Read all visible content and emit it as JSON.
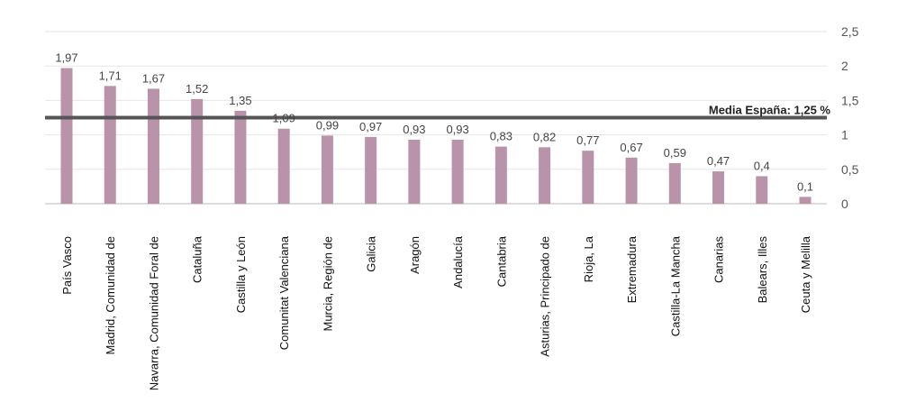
{
  "chart_data": {
    "type": "bar",
    "categories": [
      "País Vasco",
      "Madrid, Comunidad de",
      "Navarra, Comunidad Foral de",
      "Cataluña",
      "Castilla y León",
      "Comunitat Valenciana",
      "Murcia, Región de",
      "Galicia",
      "Aragón",
      "Andalucía",
      "Cantabria",
      "Asturias, Principado de",
      "Rioja, La",
      "Extremadura",
      "Castilla-La Mancha",
      "Canarias",
      "Balears, Illes",
      "Ceuta y Melilla"
    ],
    "values": [
      1.97,
      1.71,
      1.67,
      1.52,
      1.35,
      1.09,
      0.99,
      0.97,
      0.93,
      0.93,
      0.83,
      0.82,
      0.77,
      0.67,
      0.59,
      0.47,
      0.4,
      0.1
    ],
    "value_labels": [
      "1,97",
      "1,71",
      "1,67",
      "1,52",
      "1,35",
      "1,09",
      "0,99",
      "0,97",
      "0,93",
      "0,93",
      "0,83",
      "0,82",
      "0,77",
      "0,67",
      "0,59",
      "0,47",
      "0,4",
      "0,1"
    ],
    "ylim": [
      0,
      2.5
    ],
    "y_ticks": [
      0,
      0.5,
      1,
      1.5,
      2,
      2.5
    ],
    "y_tick_labels": [
      "0",
      "0,5",
      "1",
      "1,5",
      "2",
      "2,5"
    ],
    "y_axis_side": "right",
    "grid": true,
    "reference_line": {
      "value": 1.25,
      "label": "Media España: 1,25 %"
    },
    "colors": {
      "bar": "#b893aa",
      "reference_line": "#555555",
      "grid": "#e6e6e6"
    }
  }
}
